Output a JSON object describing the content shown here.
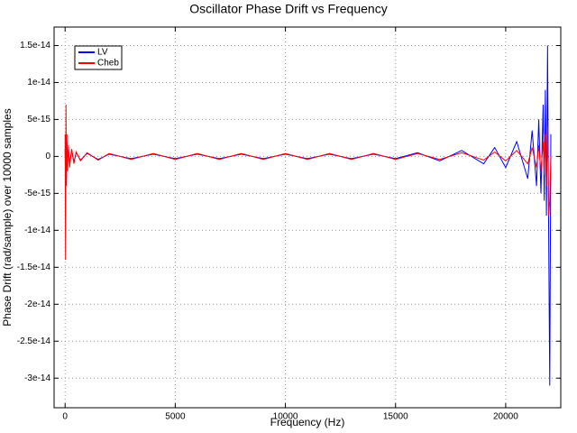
{
  "chart_data": {
    "type": "line",
    "title": "Oscillator Phase Drift vs Frequency",
    "xlabel": "Frequency (Hz)",
    "ylabel": "Phase Drift (rad/sample) over 10000 samples",
    "x": [
      0,
      20,
      40,
      60,
      80,
      100,
      150,
      200,
      300,
      400,
      500,
      700,
      1000,
      1500,
      2000,
      3000,
      4000,
      5000,
      6000,
      7000,
      8000,
      9000,
      10000,
      11000,
      12000,
      13000,
      14000,
      15000,
      16000,
      17000,
      18000,
      19000,
      19500,
      20000,
      20500,
      21000,
      21200,
      21400,
      21500,
      21600,
      21700,
      21750,
      21800,
      21850,
      21900,
      21950,
      22000,
      22050
    ],
    "series": [
      {
        "name": "LV",
        "color": "#0000ff",
        "values": [
          1e-15,
          -2e-15,
          3e-15,
          -3e-15,
          2e-15,
          -1e-15,
          1e-15,
          -1e-15,
          8e-16,
          -8e-16,
          5e-16,
          -5e-16,
          4e-16,
          -4e-16,
          3e-16,
          -3e-16,
          3e-16,
          -3e-16,
          3e-16,
          -3e-16,
          3e-16,
          -3e-16,
          3e-16,
          -3e-16,
          3e-16,
          -3e-16,
          3e-16,
          -3e-16,
          5e-16,
          -6e-16,
          8e-16,
          -1e-15,
          1.2e-15,
          -1.5e-15,
          2e-15,
          -3e-15,
          3.5e-15,
          -4e-15,
          5e-15,
          -5e-15,
          7e-15,
          -6e-15,
          9e-15,
          -8e-15,
          1.5e-14,
          -1e-14,
          -3.1e-14,
          3e-15
        ]
      },
      {
        "name": "Cheb",
        "color": "#ff0000",
        "values": [
          3e-15,
          -1.4e-14,
          7e-15,
          -4e-15,
          3e-15,
          -2e-15,
          1.5e-15,
          -1.5e-15,
          1e-15,
          -1e-15,
          6e-16,
          -6e-16,
          5e-16,
          -5e-16,
          4e-16,
          -4e-16,
          4e-16,
          -4e-16,
          4e-16,
          -4e-16,
          4e-16,
          -4e-16,
          4e-16,
          -4e-16,
          4e-16,
          -4e-16,
          4e-16,
          -4e-16,
          4e-16,
          -4e-16,
          5e-16,
          -5e-16,
          6e-16,
          -6e-16,
          8e-16,
          -1e-15,
          1.2e-15,
          -1.5e-15,
          1.5e-15,
          -2e-15,
          2e-15,
          -2.5e-15,
          3e-15,
          -4e-15,
          4e-15,
          -8e-15,
          -6e-15,
          0
        ]
      }
    ],
    "xlim": [
      -500,
      22500
    ],
    "xticks": [
      0,
      5000,
      10000,
      15000,
      20000
    ],
    "ylim": [
      -3.4e-14,
      1.75e-14
    ],
    "yticks": [
      1.5e-14,
      1e-14,
      5e-15,
      0,
      -5e-15,
      -1e-14,
      -1.5e-14,
      -2e-14,
      -2.5e-14,
      -3e-14
    ],
    "grid": true,
    "legend": "upper-left"
  }
}
